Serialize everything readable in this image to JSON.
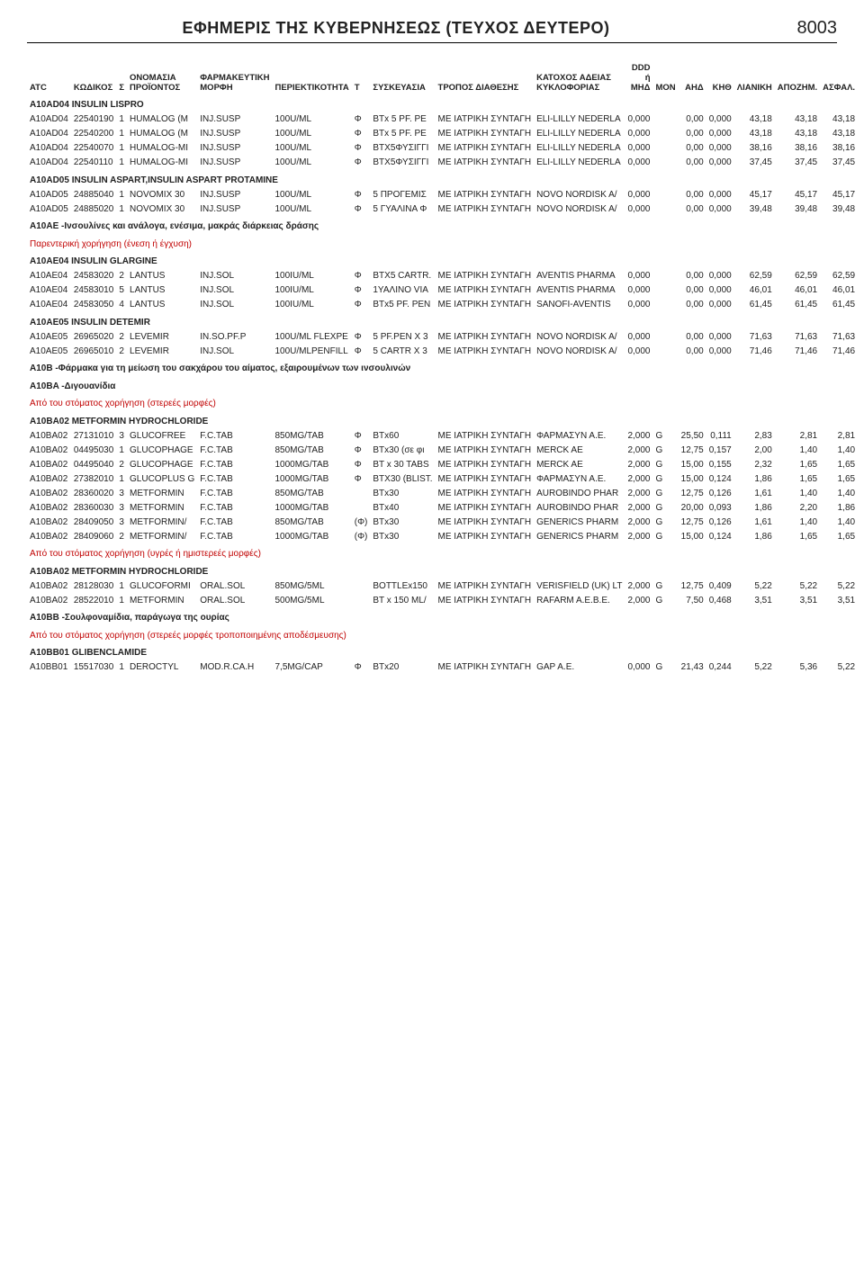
{
  "header": {
    "title": "ΕΦΗΜΕΡΙΣ ΤΗΣ ΚΥΒΕΡΝΗΣΕΩΣ (ΤΕΥΧΟΣ ΔΕΥΤΕΡΟ)",
    "page_number": "8003"
  },
  "columns": [
    "ATC",
    "ΚΩΔΙΚΟΣ",
    "Σ",
    "ΟΝΟΜΑΣΙΑ ΠΡΟΪΟΝΤΟΣ",
    "ΦΑΡΜΑΚΕΥΤΙΚΗ ΜΟΡΦΗ",
    "ΠΕΡΙΕΚΤΙΚΟΤΗΤΑ",
    "Τ",
    "ΣΥΣΚΕΥΑΣΙΑ",
    "ΤΡΟΠΟΣ ΔΙΑΘΕΣΗΣ",
    "ΚΑΤΟΧΟΣ ΑΔΕΙΑΣ ΚΥΚΛΟΦΟΡΙΑΣ",
    "DDD ή ΜΗΔ",
    "ΜΟΝ",
    "ΑΗΔ",
    "ΚΗΘ",
    "ΛΙΑΝΙΚΗ",
    "ΑΠΟΖΗΜ.",
    "ΑΣΦΑΛ."
  ],
  "rows": [
    {
      "type": "group",
      "text": "A10AD04  INSULIN LISPRO",
      "bold": true
    },
    {
      "type": "data",
      "c": [
        "A10AD04",
        "22540190",
        "1",
        "HUMALOG (M",
        "INJ.SUSP",
        "100U/ML",
        "Φ",
        "BTx 5 PF. PE",
        "ΜΕ ΙΑΤΡΙΚΗ ΣΥΝΤΑΓΗ",
        "ELI-LILLY NEDERLA",
        "0,000",
        "",
        "0,00",
        "0,000",
        "43,18",
        "43,18",
        "43,18"
      ]
    },
    {
      "type": "data",
      "c": [
        "A10AD04",
        "22540200",
        "1",
        "HUMALOG (M",
        "INJ.SUSP",
        "100U/ML",
        "Φ",
        "BTx 5 PF. PE",
        "ΜΕ ΙΑΤΡΙΚΗ ΣΥΝΤΑΓΗ",
        "ELI-LILLY NEDERLA",
        "0,000",
        "",
        "0,00",
        "0,000",
        "43,18",
        "43,18",
        "43,18"
      ]
    },
    {
      "type": "data",
      "c": [
        "A10AD04",
        "22540070",
        "1",
        "HUMALOG-MI",
        "INJ.SUSP",
        "100U/ML",
        "Φ",
        "BTX5ΦΥΣΙΓΓΙ",
        "ΜΕ ΙΑΤΡΙΚΗ ΣΥΝΤΑΓΗ",
        "ELI-LILLY NEDERLA",
        "0,000",
        "",
        "0,00",
        "0,000",
        "38,16",
        "38,16",
        "38,16"
      ]
    },
    {
      "type": "data",
      "c": [
        "A10AD04",
        "22540110",
        "1",
        "HUMALOG-MI",
        "INJ.SUSP",
        "100U/ML",
        "Φ",
        "BTX5ΦΥΣΙΓΓΙ",
        "ΜΕ ΙΑΤΡΙΚΗ ΣΥΝΤΑΓΗ",
        "ELI-LILLY NEDERLA",
        "0,000",
        "",
        "0,00",
        "0,000",
        "37,45",
        "37,45",
        "37,45"
      ]
    },
    {
      "type": "group",
      "text": "A10AD05  INSULIN ASPART,INSULIN ASPART PROTAMINE",
      "bold": true
    },
    {
      "type": "data",
      "c": [
        "A10AD05",
        "24885040",
        "1",
        "NOVOMIX 30",
        "INJ.SUSP",
        "100U/ML",
        "Φ",
        "5 ΠΡΟΓΕΜΙΣ",
        "ΜΕ ΙΑΤΡΙΚΗ ΣΥΝΤΑΓΗ",
        "NOVO NORDISK A/",
        "0,000",
        "",
        "0,00",
        "0,000",
        "45,17",
        "45,17",
        "45,17"
      ]
    },
    {
      "type": "data",
      "c": [
        "A10AD05",
        "24885020",
        "1",
        "NOVOMIX 30",
        "INJ.SUSP",
        "100U/ML",
        "Φ",
        "5 ΓΥΑΛΙΝΑ Φ",
        "ΜΕ ΙΑΤΡΙΚΗ ΣΥΝΤΑΓΗ",
        "NOVO NORDISK A/",
        "0,000",
        "",
        "0,00",
        "0,000",
        "39,48",
        "39,48",
        "39,48"
      ]
    },
    {
      "type": "group",
      "text": "A10AE  -Ινσουλίνες και ανάλογα, ενέσιμα, μακράς διάρκειας δράσης",
      "bold": true
    },
    {
      "type": "group",
      "text": "Παρεντερική χορήγηση (ένεση ή έγχυση)",
      "red": true
    },
    {
      "type": "group",
      "text": "A10AE04  INSULIN GLARGINE",
      "bold": true
    },
    {
      "type": "data",
      "c": [
        "A10AE04",
        "24583020",
        "2",
        "LANTUS",
        "INJ.SOL",
        "100IU/ML",
        "Φ",
        "BTX5 CARTR.",
        "ΜΕ ΙΑΤΡΙΚΗ ΣΥΝΤΑΓΗ",
        "AVENTIS PHARMA",
        "0,000",
        "",
        "0,00",
        "0,000",
        "62,59",
        "62,59",
        "62,59"
      ]
    },
    {
      "type": "data",
      "c": [
        "A10AE04",
        "24583010",
        "5",
        "LANTUS",
        "INJ.SOL",
        "100IU/ML",
        "Φ",
        "1ΥΑΛΙΝΟ VIA",
        "ΜΕ ΙΑΤΡΙΚΗ ΣΥΝΤΑΓΗ",
        "AVENTIS PHARMA",
        "0,000",
        "",
        "0,00",
        "0,000",
        "46,01",
        "46,01",
        "46,01"
      ]
    },
    {
      "type": "data",
      "c": [
        "A10AE04",
        "24583050",
        "4",
        "LANTUS",
        "INJ.SOL",
        "100IU/ML",
        "Φ",
        "BTx5 PF. PEN",
        "ΜΕ ΙΑΤΡΙΚΗ ΣΥΝΤΑΓΗ",
        "SANOFI-AVENTIS",
        "0,000",
        "",
        "0,00",
        "0,000",
        "61,45",
        "61,45",
        "61,45"
      ]
    },
    {
      "type": "group",
      "text": "A10AE05  INSULIN DETEMIR",
      "bold": true
    },
    {
      "type": "data",
      "c": [
        "A10AE05",
        "26965020",
        "2",
        "LEVEMIR",
        "IN.SO.PF.P",
        "100U/ML FLEXPE",
        "Φ",
        "5 PF.PEN X 3",
        "ΜΕ ΙΑΤΡΙΚΗ ΣΥΝΤΑΓΗ",
        "NOVO NORDISK A/",
        "0,000",
        "",
        "0,00",
        "0,000",
        "71,63",
        "71,63",
        "71,63"
      ]
    },
    {
      "type": "data",
      "c": [
        "A10AE05",
        "26965010",
        "2",
        "LEVEMIR",
        "INJ.SOL",
        "100U/MLPENFILL",
        "Φ",
        "5 CARTR X 3",
        "ΜΕ ΙΑΤΡΙΚΗ ΣΥΝΤΑΓΗ",
        "NOVO NORDISK A/",
        "0,000",
        "",
        "0,00",
        "0,000",
        "71,46",
        "71,46",
        "71,46"
      ]
    },
    {
      "type": "group",
      "text": "A10B  -Φάρμακα για τη μείωση του σακχάρου του αίματος, εξαιρουμένων των ινσουλινών",
      "bold": true
    },
    {
      "type": "group",
      "text": "A10BA  -Διγουανίδια",
      "bold": true
    },
    {
      "type": "group",
      "text": "Από του στόματος χορήγηση (στερεές μορφές)",
      "red": true
    },
    {
      "type": "group",
      "text": "A10BA02  METFORMIN HYDROCHLORIDE",
      "bold": true
    },
    {
      "type": "data",
      "c": [
        "A10BA02",
        "27131010",
        "3",
        "GLUCOFREE",
        "F.C.TAB",
        "850MG/TAB",
        "Φ",
        "BTx60",
        "ΜΕ ΙΑΤΡΙΚΗ ΣΥΝΤΑΓΗ",
        "ΦΑΡΜΑΣΥΝ Α.Ε.",
        "2,000",
        "G",
        "25,50",
        "0,111",
        "2,83",
        "2,81",
        "2,81"
      ]
    },
    {
      "type": "data",
      "c": [
        "A10BA02",
        "04495030",
        "1",
        "GLUCOPHAGE",
        "F.C.TAB",
        "850MG/TAB",
        "Φ",
        "BTx30 (σε φι",
        "ΜΕ ΙΑΤΡΙΚΗ ΣΥΝΤΑΓΗ",
        "MERCK AE",
        "2,000",
        "G",
        "12,75",
        "0,157",
        "2,00",
        "1,40",
        "1,40"
      ]
    },
    {
      "type": "data",
      "c": [
        "A10BA02",
        "04495040",
        "2",
        "GLUCOPHAGE",
        "F.C.TAB",
        "1000MG/TAB",
        "Φ",
        "BT x 30 TABS",
        "ΜΕ ΙΑΤΡΙΚΗ ΣΥΝΤΑΓΗ",
        "MERCK AE",
        "2,000",
        "G",
        "15,00",
        "0,155",
        "2,32",
        "1,65",
        "1,65"
      ]
    },
    {
      "type": "data",
      "c": [
        "A10BA02",
        "27382010",
        "1",
        "GLUCOPLUS G",
        "F.C.TAB",
        "1000MG/TAB",
        "Φ",
        "BTX30 (BLIST.",
        "ΜΕ ΙΑΤΡΙΚΗ ΣΥΝΤΑΓΗ",
        "ΦΑΡΜΑΣΥΝ Α.Ε.",
        "2,000",
        "G",
        "15,00",
        "0,124",
        "1,86",
        "1,65",
        "1,65"
      ]
    },
    {
      "type": "data",
      "c": [
        "A10BA02",
        "28360020",
        "3",
        "METFORMIN",
        "F.C.TAB",
        "850MG/TAB",
        "",
        "BTx30",
        "ΜΕ ΙΑΤΡΙΚΗ ΣΥΝΤΑΓΗ",
        "AUROBINDO PHAR",
        "2,000",
        "G",
        "12,75",
        "0,126",
        "1,61",
        "1,40",
        "1,40"
      ]
    },
    {
      "type": "data",
      "c": [
        "A10BA02",
        "28360030",
        "3",
        "METFORMIN",
        "F.C.TAB",
        "1000MG/TAB",
        "",
        "BTx40",
        "ΜΕ ΙΑΤΡΙΚΗ ΣΥΝΤΑΓΗ",
        "AUROBINDO PHAR",
        "2,000",
        "G",
        "20,00",
        "0,093",
        "1,86",
        "2,20",
        "1,86"
      ]
    },
    {
      "type": "data",
      "c": [
        "A10BA02",
        "28409050",
        "3",
        "METFORMIN/",
        "F.C.TAB",
        "850MG/TAB",
        "(Φ)",
        "BTx30",
        "ΜΕ ΙΑΤΡΙΚΗ ΣΥΝΤΑΓΗ",
        "GENERICS PHARM",
        "2,000",
        "G",
        "12,75",
        "0,126",
        "1,61",
        "1,40",
        "1,40"
      ]
    },
    {
      "type": "data",
      "c": [
        "A10BA02",
        "28409060",
        "2",
        "METFORMIN/",
        "F.C.TAB",
        "1000MG/TAB",
        "(Φ)",
        "BTx30",
        "ΜΕ ΙΑΤΡΙΚΗ ΣΥΝΤΑΓΗ",
        "GENERICS PHARM",
        "2,000",
        "G",
        "15,00",
        "0,124",
        "1,86",
        "1,65",
        "1,65"
      ]
    },
    {
      "type": "group",
      "text": "Από του στόματος χορήγηση (υγρές ή ημιστερεές μορφές)",
      "red": true
    },
    {
      "type": "group",
      "text": "A10BA02  METFORMIN HYDROCHLORIDE",
      "bold": true
    },
    {
      "type": "data",
      "c": [
        "A10BA02",
        "28128030",
        "1",
        "GLUCOFORMI",
        "ORAL.SOL",
        "850MG/5ML",
        "",
        "BOTTLEx150",
        "ΜΕ ΙΑΤΡΙΚΗ ΣΥΝΤΑΓΗ",
        "VERISFIELD (UK) LT",
        "2,000",
        "G",
        "12,75",
        "0,409",
        "5,22",
        "5,22",
        "5,22"
      ]
    },
    {
      "type": "data",
      "c": [
        "A10BA02",
        "28522010",
        "1",
        "METFORMIN",
        "ORAL.SOL",
        "500MG/5ML",
        "",
        "BT x 150 ML/",
        "ΜΕ ΙΑΤΡΙΚΗ ΣΥΝΤΑΓΗ",
        "RAFARM A.E.B.E.",
        "2,000",
        "G",
        "7,50",
        "0,468",
        "3,51",
        "3,51",
        "3,51"
      ]
    },
    {
      "type": "group",
      "text": "A10BB  -Σουλφοναμίδια, παράγωγα της ουρίας",
      "bold": true
    },
    {
      "type": "group",
      "text": "Από του στόματος χορήγηση (στερεές μορφές τροποποιημένης αποδέσμευσης)",
      "red": true
    },
    {
      "type": "group",
      "text": "A10BB01  GLIBENCLAMIDE",
      "bold": true
    },
    {
      "type": "data",
      "c": [
        "A10BB01",
        "15517030",
        "1",
        "DEROCTYL",
        "MOD.R.CA.H",
        "7,5MG/CAP",
        "Φ",
        "BTx20",
        "ΜΕ ΙΑΤΡΙΚΗ ΣΥΝΤΑΓΗ",
        "GAP A.E.",
        "0,000",
        "G",
        "21,43",
        "0,244",
        "5,22",
        "5,36",
        "5,22"
      ]
    }
  ]
}
